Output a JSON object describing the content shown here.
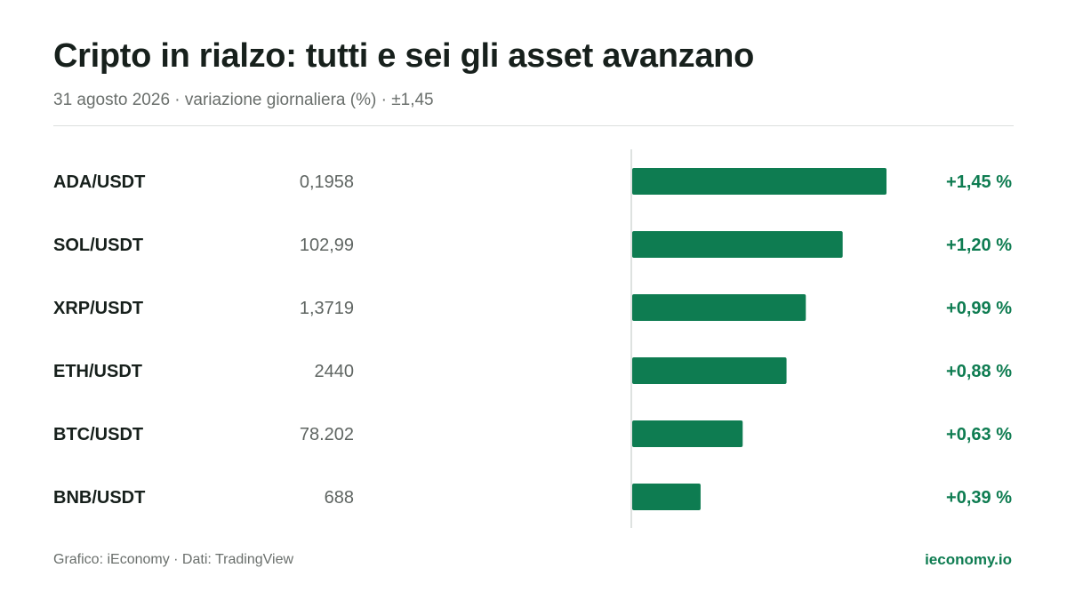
{
  "title": "Cripto in rialzo: tutti e sei gli asset avanzano",
  "subtitle": "31 agosto 2026 · variazione giornaliera (%) · ±1,45",
  "footer": {
    "source": "Grafico: iEconomy · Dati: TradingView",
    "brand": "ieconomy.io"
  },
  "colors": {
    "bar": "#0e7c51",
    "positive_text": "#0e7c51",
    "axis": "#d4d8d6"
  },
  "chart_data": {
    "type": "bar",
    "orientation": "horizontal",
    "categories": [
      "ADA/USDT",
      "SOL/USDT",
      "XRP/USDT",
      "ETH/USDT",
      "BTC/USDT",
      "BNB/USDT"
    ],
    "prices": [
      "0,1958",
      "102,99",
      "1,3719",
      "2440",
      "78.202",
      "688"
    ],
    "values": [
      1.45,
      1.2,
      0.99,
      0.88,
      0.63,
      0.39
    ],
    "value_labels": [
      "+1,45 %",
      "+1,20 %",
      "+0,99 %",
      "+0,88 %",
      "+0,63 %",
      "+0,39 %"
    ],
    "xlim": [
      0,
      1.45
    ],
    "grid": false
  }
}
